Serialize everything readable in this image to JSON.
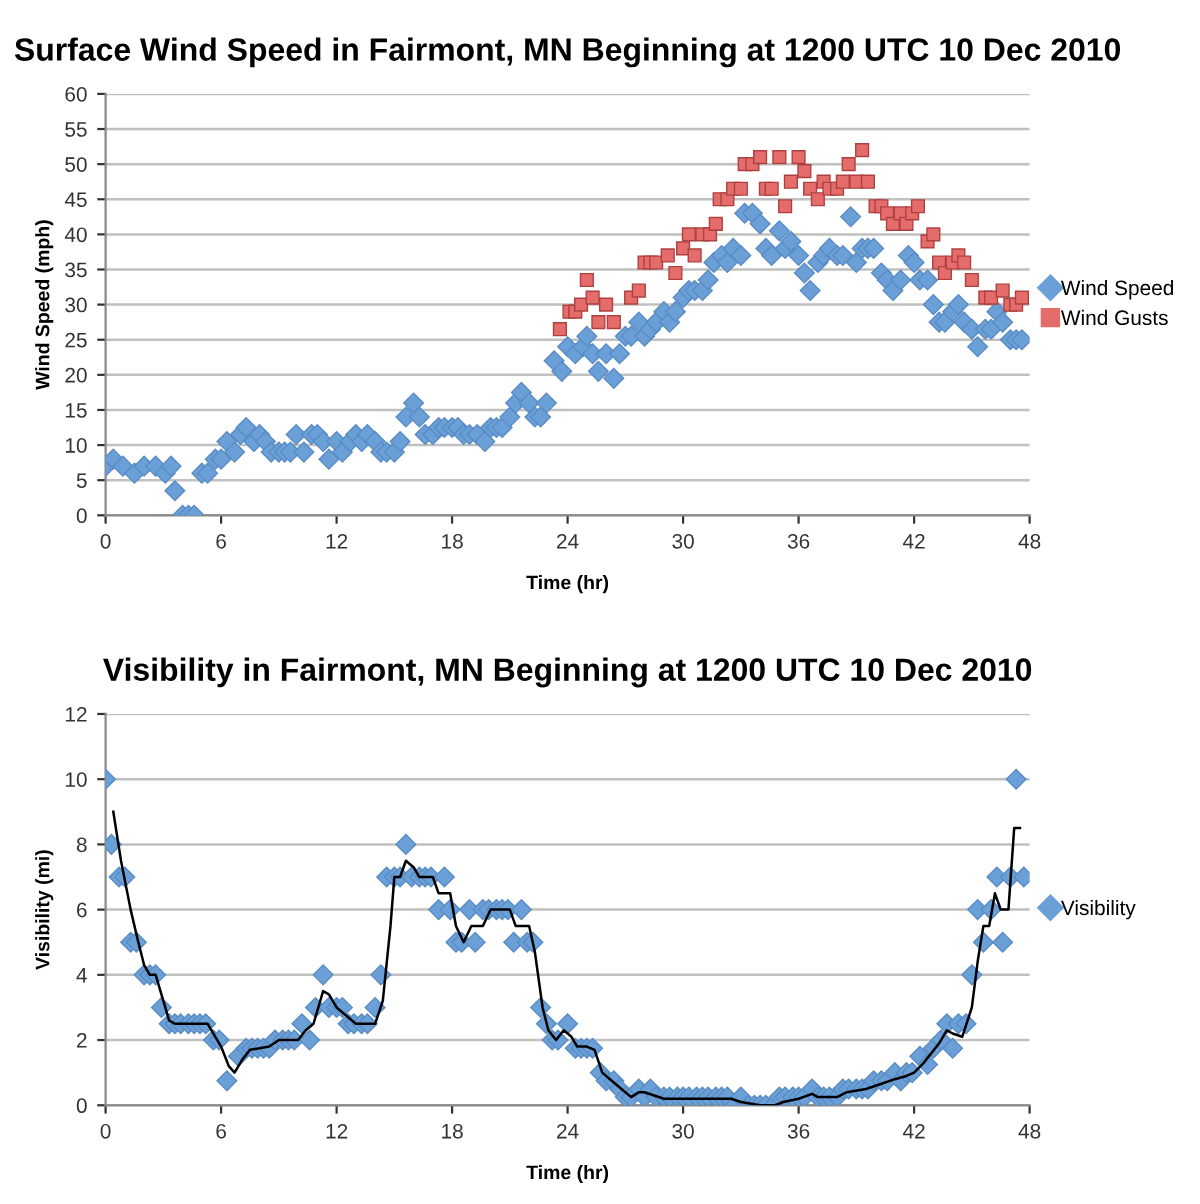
{
  "chart_data": [
    {
      "type": "scatter",
      "title": "Surface Wind Speed in Fairmont, MN Beginning at 1200 UTC 10 Dec 2010",
      "xlabel": "Time (hr)",
      "ylabel": "Wind Speed (mph)",
      "xlim": [
        0,
        48
      ],
      "xticks": [
        0,
        6,
        12,
        18,
        24,
        30,
        36,
        42,
        48
      ],
      "ylim": [
        0,
        60
      ],
      "yticks": [
        0,
        5,
        10,
        15,
        20,
        25,
        30,
        35,
        40,
        45,
        50,
        55,
        60
      ],
      "grid": "y",
      "legend": "right",
      "series": [
        {
          "name": "Wind Speed",
          "color": "#6a9fd8",
          "marker": "diamond",
          "x": [
            0,
            0.4,
            0.9,
            1.5,
            2,
            2.6,
            3.1,
            3.4,
            3.6,
            4,
            4.3,
            4.6,
            5,
            5.3,
            5.7,
            6,
            6.3,
            6.7,
            7,
            7.3,
            7.7,
            8,
            8.3,
            8.6,
            9,
            9.3,
            9.6,
            9.9,
            10.3,
            10.7,
            11,
            11.3,
            11.6,
            12,
            12.3,
            12.7,
            13,
            13.3,
            13.6,
            14,
            14.3,
            14.6,
            15,
            15.3,
            15.6,
            16,
            16.3,
            16.6,
            17,
            17.3,
            17.6,
            18,
            18.3,
            18.6,
            18.9,
            19.3,
            19.7,
            20,
            20.3,
            20.6,
            21,
            21.3,
            21.6,
            22,
            22.3,
            22.6,
            22.9,
            23.3,
            23.7,
            24,
            24.4,
            24.8,
            25,
            25.3,
            25.6,
            26,
            26.4,
            26.7,
            27,
            27.3,
            27.7,
            28,
            28.3,
            28.6,
            29,
            29.3,
            29.6,
            30,
            30.3,
            30.6,
            31,
            31.3,
            31.6,
            32,
            32.3,
            32.6,
            33,
            33.2,
            33.6,
            34,
            34.3,
            34.6,
            35,
            35.3,
            35.6,
            36,
            36.3,
            36.6,
            37,
            37.3,
            37.6,
            38,
            38.3,
            38.7,
            39,
            39.3,
            39.6,
            39.9,
            40.3,
            40.6,
            40.9,
            41.3,
            41.7,
            42,
            42.3,
            42.7,
            43,
            43.3,
            43.6,
            44,
            44.3,
            44.6,
            45,
            45.3,
            45.7,
            46,
            46.3,
            46.6,
            47,
            47.3,
            47.6
          ],
          "values": [
            7,
            8,
            7,
            6,
            7,
            7,
            6,
            7,
            3.5,
            0,
            0,
            0,
            6,
            6,
            8,
            8,
            10.5,
            9,
            11.5,
            12.5,
            10.5,
            11.5,
            10.5,
            9,
            9,
            9,
            9,
            11.5,
            9,
            11.5,
            11.5,
            10.5,
            8,
            10.5,
            9,
            10.5,
            11.5,
            10.5,
            11.5,
            10.5,
            9,
            9,
            9,
            10.5,
            14,
            16,
            14,
            11.5,
            11.5,
            12.5,
            12.5,
            12.5,
            12.5,
            11.5,
            11.5,
            11.5,
            10.5,
            12.5,
            12.5,
            12.5,
            14,
            16,
            17.5,
            16,
            14,
            14,
            16,
            22,
            20.5,
            24,
            23,
            24,
            25.5,
            23,
            20.5,
            23,
            19.5,
            23,
            25.5,
            25.5,
            27.5,
            25.5,
            26.5,
            27.5,
            29,
            27.5,
            29,
            31,
            32,
            32,
            32,
            33.5,
            36,
            37,
            36,
            38,
            37,
            43,
            43,
            41.5,
            38,
            37,
            40.5,
            38,
            39,
            37,
            34.5,
            32,
            36,
            37,
            38,
            37,
            37,
            42.5,
            36,
            38,
            38,
            38,
            34.5,
            33.5,
            32,
            33.5,
            37,
            36,
            33.5,
            33.5,
            30,
            27.5,
            27.5,
            29,
            30,
            27.5,
            26.5,
            24,
            26.5,
            26.5,
            29,
            27.5,
            25,
            25,
            25
          ]
        },
        {
          "name": "Wind Gusts",
          "color": "#e46c6a",
          "marker": "square",
          "x": [
            23.6,
            24.1,
            24.4,
            24.7,
            25,
            25.3,
            25.6,
            26,
            26.4,
            27.3,
            27.7,
            28,
            28.3,
            28.6,
            29.2,
            29.6,
            30,
            30.3,
            30.6,
            31,
            31.4,
            31.7,
            31.9,
            32.3,
            32.6,
            33,
            33.2,
            33.6,
            34,
            34.3,
            34.6,
            35,
            35.3,
            35.6,
            36,
            36.3,
            36.6,
            37,
            37.3,
            37.6,
            38,
            38.3,
            38.6,
            39,
            39.3,
            39.6,
            40,
            40.3,
            40.6,
            40.9,
            41.3,
            41.6,
            41.9,
            42.2,
            42.7,
            43,
            43.3,
            43.6,
            44,
            44.3,
            44.6,
            45,
            45.7,
            46,
            46.6,
            47,
            47.3,
            47.6
          ],
          "values": [
            26.5,
            29,
            29,
            30,
            33.5,
            31,
            27.5,
            30,
            27.5,
            31,
            32,
            36,
            36,
            36,
            37,
            34.5,
            38,
            40,
            37,
            40,
            40,
            41.5,
            45,
            45,
            46.5,
            46.5,
            50,
            50,
            51,
            46.5,
            46.5,
            51,
            44,
            47.5,
            51,
            49,
            46.5,
            45,
            47.5,
            46.5,
            46.5,
            47.5,
            50,
            47.5,
            52,
            47.5,
            44,
            44,
            43,
            41.5,
            43,
            41.5,
            43,
            44,
            39,
            40,
            36,
            34.5,
            36,
            37,
            36,
            33.5,
            31,
            31,
            32,
            30,
            30,
            31
          ]
        }
      ]
    },
    {
      "type": "scatter",
      "title": "Visibility in Fairmont, MN Beginning at 1200 UTC 10 Dec 2010",
      "xlabel": "Time (hr)",
      "ylabel": "Visibility (mi)",
      "xlim": [
        0,
        48
      ],
      "xticks": [
        0,
        6,
        12,
        18,
        24,
        30,
        36,
        42,
        48
      ],
      "ylim": [
        0,
        12
      ],
      "yticks": [
        0,
        2,
        4,
        6,
        8,
        10,
        12
      ],
      "grid": "y",
      "legend": "right",
      "series": [
        {
          "name": "Visibility",
          "color": "#6a9fd8",
          "marker": "diamond",
          "x": [
            0,
            0.3,
            0.7,
            1,
            1.3,
            1.6,
            2,
            2.3,
            2.6,
            2.9,
            3.3,
            3.6,
            3.9,
            4.3,
            4.6,
            4.9,
            5.2,
            5.6,
            5.9,
            6.3,
            6.9,
            7.3,
            7.6,
            7.9,
            8.2,
            8.5,
            8.8,
            9.2,
            9.5,
            9.8,
            10.2,
            10.6,
            10.9,
            11.3,
            11.6,
            12,
            12.3,
            12.6,
            12.9,
            13.3,
            13.6,
            14,
            14.3,
            14.6,
            15,
            15.3,
            15.6,
            15.9,
            16.3,
            16.6,
            16.9,
            17.3,
            17.6,
            17.9,
            18.2,
            18.5,
            18.9,
            19.2,
            19.6,
            19.9,
            20.3,
            20.6,
            20.9,
            21.2,
            21.6,
            21.9,
            22.2,
            22.6,
            22.9,
            23.2,
            23.5,
            24,
            24.4,
            24.7,
            25,
            25.3,
            25.7,
            26,
            26.4,
            26.7,
            27,
            27.3,
            27.7,
            28,
            28.3,
            28.6,
            29,
            29.3,
            29.7,
            30,
            30.3,
            30.7,
            31,
            31.3,
            31.7,
            32,
            32.3,
            32.7,
            33,
            33.4,
            33.7,
            34,
            34.3,
            34.7,
            35,
            35.3,
            35.7,
            36,
            36.3,
            36.7,
            37,
            37.3,
            37.6,
            38,
            38.3,
            38.6,
            39,
            39.3,
            39.6,
            39.9,
            40.3,
            40.6,
            41,
            41.3,
            41.6,
            41.9,
            42.3,
            42.7,
            43,
            43.4,
            43.7,
            44,
            44.3,
            44.7,
            45,
            45.3,
            45.6,
            46,
            46.3,
            46.6,
            47,
            47.3,
            47.7
          ],
          "values": [
            10,
            8,
            7,
            7,
            5,
            5,
            4,
            4,
            4,
            3,
            2.5,
            2.5,
            2.5,
            2.5,
            2.5,
            2.5,
            2.5,
            2,
            2,
            0.75,
            1.5,
            1.75,
            1.75,
            1.75,
            1.75,
            1.75,
            2,
            2,
            2,
            2,
            2.5,
            2,
            3,
            4,
            3,
            3,
            3,
            2.5,
            2.5,
            2.5,
            2.5,
            3,
            4,
            7,
            7,
            7,
            8,
            7,
            7,
            7,
            7,
            6,
            7,
            6,
            5,
            5,
            6,
            5,
            6,
            6,
            6,
            6,
            6,
            5,
            6,
            5,
            5,
            3,
            2.5,
            2,
            2,
            2.5,
            1.75,
            1.75,
            1.75,
            1.75,
            1,
            0.75,
            0.75,
            0.5,
            0.25,
            0.25,
            0.5,
            0.25,
            0.5,
            0.25,
            0.25,
            0.25,
            0.25,
            0.25,
            0.25,
            0.25,
            0.25,
            0.25,
            0.25,
            0.25,
            0.25,
            0,
            0.25,
            0,
            0,
            0,
            0,
            0,
            0.25,
            0.25,
            0.25,
            0.25,
            0.25,
            0.5,
            0.25,
            0.25,
            0.25,
            0.25,
            0.5,
            0.5,
            0.5,
            0.5,
            0.5,
            0.75,
            0.75,
            0.75,
            1,
            0.75,
            1,
            1,
            1.5,
            1.25,
            1.75,
            2,
            2.5,
            1.75,
            2.5,
            2.5,
            4,
            6,
            5,
            6,
            7,
            5,
            7,
            10,
            7
          ]
        },
        {
          "type": "line",
          "color": "#000000",
          "marker": "none",
          "line_style": "solid",
          "x": [
            0.4,
            0.8,
            1.3,
            1.7,
            2,
            2.3,
            2.6,
            3,
            3.3,
            3.6,
            5.3,
            5.6,
            6,
            6.4,
            6.7,
            7.1,
            7.5,
            8.5,
            9,
            10,
            10.4,
            10.8,
            11.3,
            11.6,
            12,
            12.6,
            13,
            14,
            14.4,
            14.8,
            15,
            15.3,
            15.6,
            16,
            16.3,
            17,
            17.3,
            17.9,
            18.2,
            18.6,
            19,
            19.6,
            20,
            21,
            21.3,
            22,
            22.3,
            22.7,
            23,
            23.4,
            23.8,
            24.2,
            24.5,
            25,
            25.4,
            25.8,
            26.2,
            26.8,
            27.3,
            27.7,
            28,
            28.5,
            29,
            32.5,
            33,
            34,
            34.8,
            35.2,
            36,
            36.7,
            37,
            38,
            38.5,
            39.5,
            40,
            41,
            41.6,
            42,
            42.5,
            43.3,
            43.7,
            44,
            44.5,
            45,
            45.3,
            45.6,
            45.9,
            46.2,
            46.5,
            46.9,
            47.2,
            47.5
          ],
          "values": [
            9,
            7.5,
            6,
            5,
            4.3,
            4,
            4,
            3.2,
            2.6,
            2.5,
            2.5,
            2.2,
            1.8,
            1.2,
            1,
            1.4,
            1.7,
            1.8,
            2,
            2,
            2.3,
            2.5,
            3.5,
            3.4,
            3,
            2.7,
            2.5,
            2.5,
            3.2,
            5.5,
            7,
            7,
            7.5,
            7.3,
            7,
            7,
            6.5,
            6.5,
            5.5,
            5,
            5.5,
            5.5,
            6,
            6,
            5.5,
            5.5,
            4.7,
            3,
            2.3,
            2,
            2.3,
            2.1,
            1.8,
            1.8,
            1.7,
            1,
            0.8,
            0.5,
            0.25,
            0.4,
            0.4,
            0.3,
            0.2,
            0.2,
            0.1,
            0,
            0,
            0.1,
            0.2,
            0.35,
            0.25,
            0.25,
            0.4,
            0.5,
            0.6,
            0.8,
            0.9,
            1,
            1.3,
            1.9,
            2.3,
            2.2,
            2.1,
            3,
            4.4,
            5.5,
            5.5,
            6.5,
            6,
            6,
            8.5,
            8.5
          ]
        }
      ]
    }
  ]
}
